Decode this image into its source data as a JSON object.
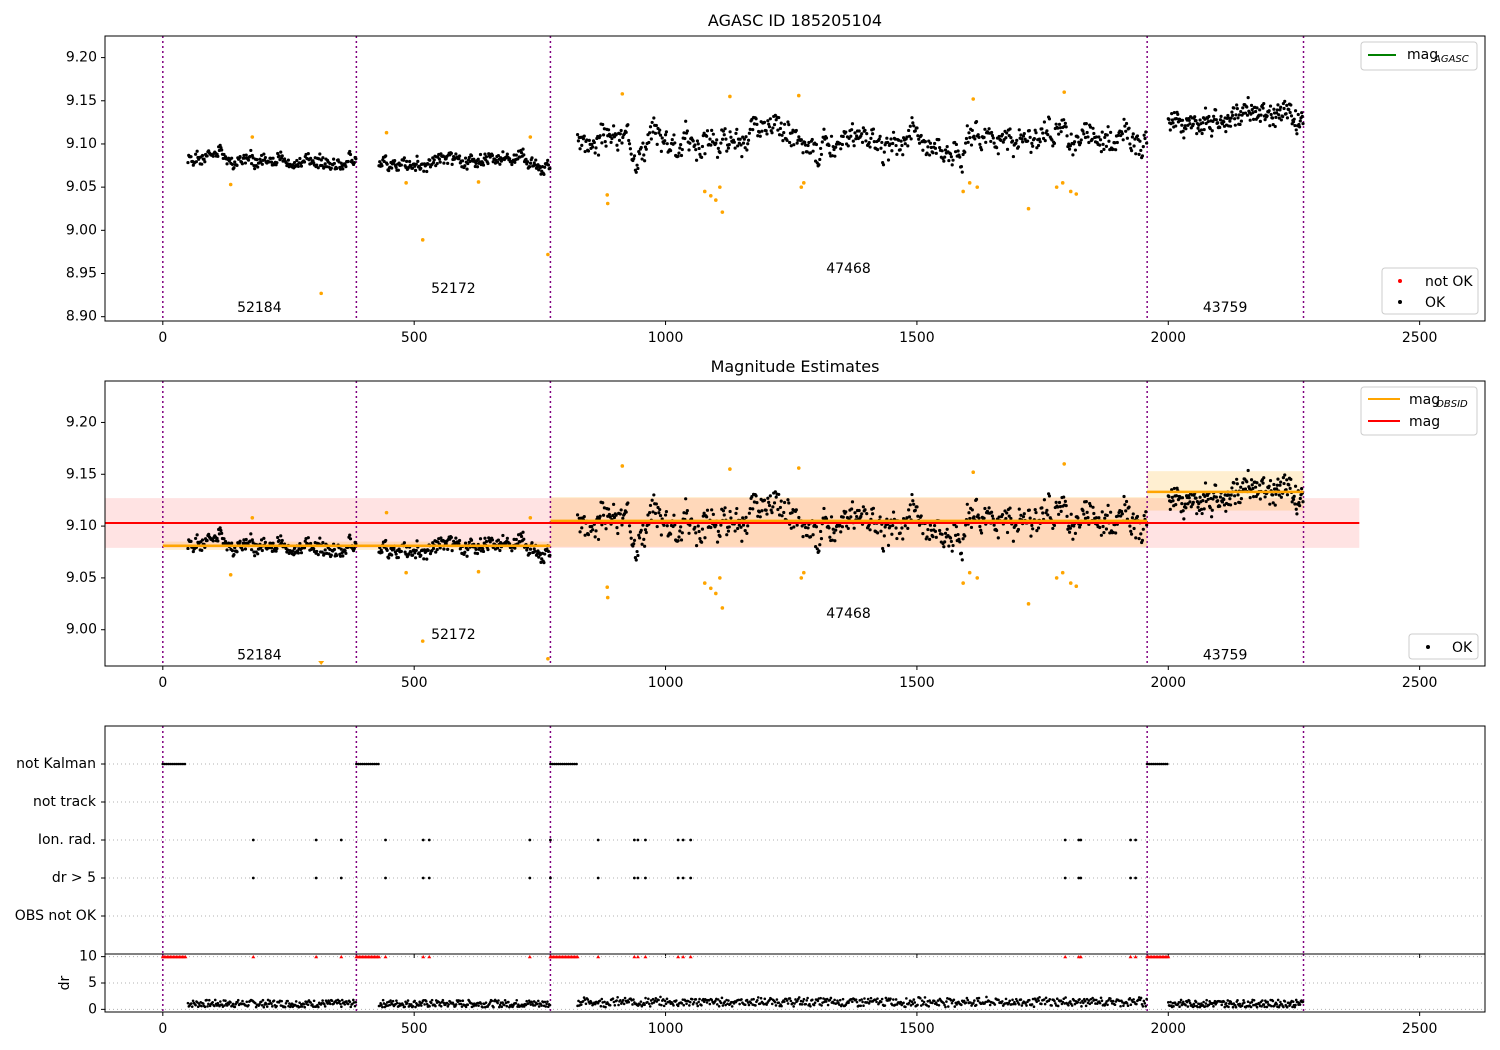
{
  "chart_data": [
    {
      "type": "scatter",
      "title": "AGASC ID 185205104",
      "xlim": [
        -115,
        2630
      ],
      "ylim": [
        8.895,
        9.225
      ],
      "xticks": [
        0,
        500,
        1000,
        1500,
        2000,
        2500
      ],
      "yticks": [
        "8.90",
        "8.95",
        "9.00",
        "9.05",
        "9.10",
        "9.15",
        "9.20"
      ],
      "obsid_boundaries": [
        0,
        385,
        771,
        1958,
        2269
      ],
      "obsids": [
        {
          "label": "52184",
          "x": 192,
          "y": 8.91
        },
        {
          "label": "52172",
          "x": 578,
          "y": 8.932
        },
        {
          "label": "47468",
          "x": 1364,
          "y": 8.955
        },
        {
          "label": "43759",
          "x": 2113,
          "y": 8.91
        }
      ],
      "legend_top": {
        "label_main": "mag",
        "label_sub": "AGASC",
        "color": "#008000"
      },
      "legend_bottom": [
        {
          "label": "not OK",
          "color": "#ff0000"
        },
        {
          "label": "OK",
          "color": "#000000"
        }
      ],
      "series": [
        {
          "name": "OK",
          "color": "#000000",
          "segments": [
            {
              "x0": 50,
              "x1": 384,
              "base": 9.08,
              "spread": 0.012,
              "n": 220,
              "seed": 1
            },
            {
              "x0": 430,
              "x1": 770,
              "base": 9.08,
              "spread": 0.012,
              "n": 230,
              "seed": 2
            },
            {
              "x0": 825,
              "x1": 1957,
              "base": 9.105,
              "spread": 0.022,
              "n": 680,
              "seed": 3
            },
            {
              "x0": 2000,
              "x1": 2268,
              "base": 9.13,
              "spread": 0.02,
              "n": 200,
              "seed": 4
            }
          ]
        },
        {
          "name": "orange",
          "color": "#ffa500",
          "points": [
            [
              135,
              9.053
            ],
            [
              178,
              9.108
            ],
            [
              315,
              8.927
            ],
            [
              445,
              9.113
            ],
            [
              484,
              9.055
            ],
            [
              517,
              8.989
            ],
            [
              628,
              9.056
            ],
            [
              731,
              9.108
            ],
            [
              766,
              8.972
            ],
            [
              884,
              9.041
            ],
            [
              885,
              9.031
            ],
            [
              914,
              9.158
            ],
            [
              1078,
              9.045
            ],
            [
              1090,
              9.04
            ],
            [
              1100,
              9.035
            ],
            [
              1108,
              9.05
            ],
            [
              1113,
              9.021
            ],
            [
              1128,
              9.155
            ],
            [
              1265,
              9.156
            ],
            [
              1270,
              9.05
            ],
            [
              1275,
              9.055
            ],
            [
              1592,
              9.045
            ],
            [
              1605,
              9.055
            ],
            [
              1612,
              9.152
            ],
            [
              1620,
              9.05
            ],
            [
              1722,
              9.025
            ],
            [
              1778,
              9.05
            ],
            [
              1790,
              9.055
            ],
            [
              1793,
              9.16
            ],
            [
              1806,
              9.045
            ],
            [
              1817,
              9.042
            ]
          ]
        }
      ]
    },
    {
      "type": "scatter",
      "title": "Magnitude Estimates",
      "xlim": [
        -115,
        2630
      ],
      "ylim": [
        8.965,
        9.24
      ],
      "xticks": [
        0,
        500,
        1000,
        1500,
        2000,
        2500
      ],
      "yticks": [
        "9.00",
        "9.05",
        "9.10",
        "9.15",
        "9.20"
      ],
      "obsid_boundaries": [
        0,
        385,
        771,
        1958,
        2269
      ],
      "obsids": [
        {
          "label": "52184",
          "x": 192,
          "y": 8.975
        },
        {
          "label": "52172",
          "x": 578,
          "y": 8.995
        },
        {
          "label": "47468",
          "x": 1364,
          "y": 9.015
        },
        {
          "label": "43759",
          "x": 2113,
          "y": 8.975
        }
      ],
      "mag": {
        "value": 9.103,
        "lo": 9.079,
        "hi": 9.127,
        "x0": -115,
        "x1": 2380,
        "color": "#ff0000"
      },
      "mag_obsid": [
        {
          "x0": 0,
          "x1": 771,
          "value": 9.081,
          "lo": 9.077,
          "hi": 9.085
        },
        {
          "x0": 771,
          "x1": 1958,
          "value": 9.105,
          "lo": 9.08,
          "hi": 9.128
        },
        {
          "x0": 1958,
          "x1": 2269,
          "value": 9.133,
          "lo": 9.115,
          "hi": 9.153
        }
      ],
      "legend_top": [
        {
          "label_main": "mag",
          "label_sub": "OBSID",
          "color": "#ffa500"
        },
        {
          "label_main": "mag",
          "label_sub": "",
          "color": "#ff0000"
        }
      ],
      "legend_bottom": [
        {
          "label": "OK",
          "color": "#000000"
        }
      ]
    },
    {
      "type": "scatter",
      "xlim": [
        -115,
        2630
      ],
      "xticks": [
        0,
        500,
        1000,
        1500,
        2000,
        2500
      ],
      "flag_rows": [
        "not Kalman",
        "not track",
        "Ion. rad.",
        "dr > 5",
        "OBS not OK"
      ],
      "not_kalman_ranges": [
        [
          0,
          45
        ],
        [
          385,
          430
        ],
        [
          771,
          825
        ],
        [
          1958,
          2000
        ]
      ],
      "ion_rad_x": [
        180,
        305,
        355,
        443,
        518,
        530,
        730,
        771,
        866,
        938,
        945,
        960,
        1025,
        1035,
        1050,
        1795,
        1822,
        1826,
        1925,
        1935
      ],
      "dr_gt5_x": [
        180,
        305,
        355,
        443,
        518,
        530,
        730,
        771,
        866,
        938,
        945,
        960,
        1025,
        1035,
        1050,
        1795,
        1822,
        1826,
        1925,
        1935
      ],
      "dr": {
        "ylabel": "dr",
        "yticks": [
          "0",
          "5",
          "10"
        ],
        "ylim": [
          -0.5,
          10.5
        ]
      }
    }
  ]
}
